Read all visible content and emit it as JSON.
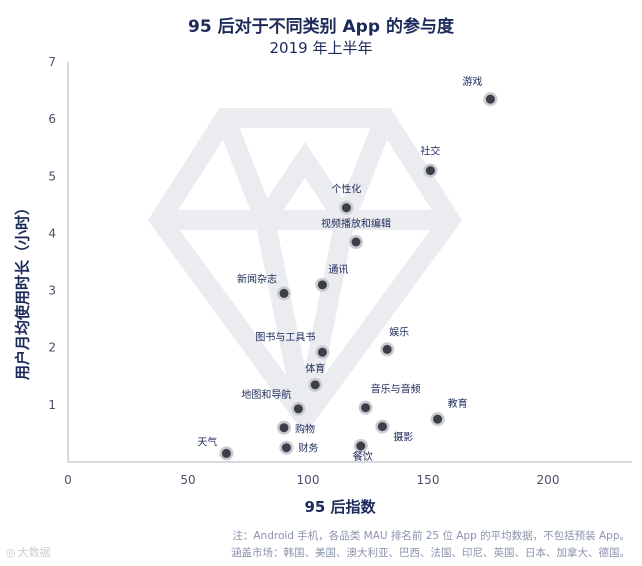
{
  "title": "95 后对于不同类别 App 的参与度",
  "subtitle": "2019 年上半年",
  "note_line1": "注：Android 手机，各品类 MAU 排名前 25 位 App 的平均数据，不包括预装 App。",
  "note_line2": "涵盖市场：韩国、美国、澳大利亚、巴西、法国、印尼、英国、日本、加拿大、德国。",
  "watermark": "大数据",
  "colors": {
    "navy": "#1c2a5a",
    "point": "#3d3f48",
    "point_ring": "#c9cbd1",
    "grid": "#b3b6c0",
    "diamond": "#ebecf0"
  },
  "chart_data": {
    "type": "scatter",
    "title": "95 后对于不同类别 App 的参与度",
    "subtitle": "2019 年上半年",
    "xlabel": "95 后指数",
    "ylabel": "用户月均使用时长（小时）",
    "xlim": [
      0,
      235
    ],
    "ylim": [
      0,
      7
    ],
    "xticks": [
      0,
      50,
      100,
      150,
      200
    ],
    "yticks": [
      1,
      2,
      3,
      4,
      5,
      6,
      7
    ],
    "grid": false,
    "points": [
      {
        "label": "游戏",
        "x": 176,
        "y": 6.35
      },
      {
        "label": "社交",
        "x": 151,
        "y": 5.1
      },
      {
        "label": "个性化",
        "x": 116,
        "y": 4.45
      },
      {
        "label": "视频播放和编辑",
        "x": 120,
        "y": 3.85
      },
      {
        "label": "新闻杂志",
        "x": 90,
        "y": 2.95
      },
      {
        "label": "通讯",
        "x": 106,
        "y": 3.1
      },
      {
        "label": "图书与工具书",
        "x": 106,
        "y": 1.92
      },
      {
        "label": "娱乐",
        "x": 133,
        "y": 1.97
      },
      {
        "label": "体育",
        "x": 103,
        "y": 1.35
      },
      {
        "label": "地图和导航",
        "x": 96,
        "y": 0.93
      },
      {
        "label": "音乐与音频",
        "x": 124,
        "y": 0.95
      },
      {
        "label": "教育",
        "x": 154,
        "y": 0.75
      },
      {
        "label": "购物",
        "x": 90,
        "y": 0.6
      },
      {
        "label": "摄影",
        "x": 131,
        "y": 0.62
      },
      {
        "label": "天气",
        "x": 66,
        "y": 0.15
      },
      {
        "label": "财务",
        "x": 91,
        "y": 0.25
      },
      {
        "label": "餐饮",
        "x": 122,
        "y": 0.28
      }
    ]
  }
}
